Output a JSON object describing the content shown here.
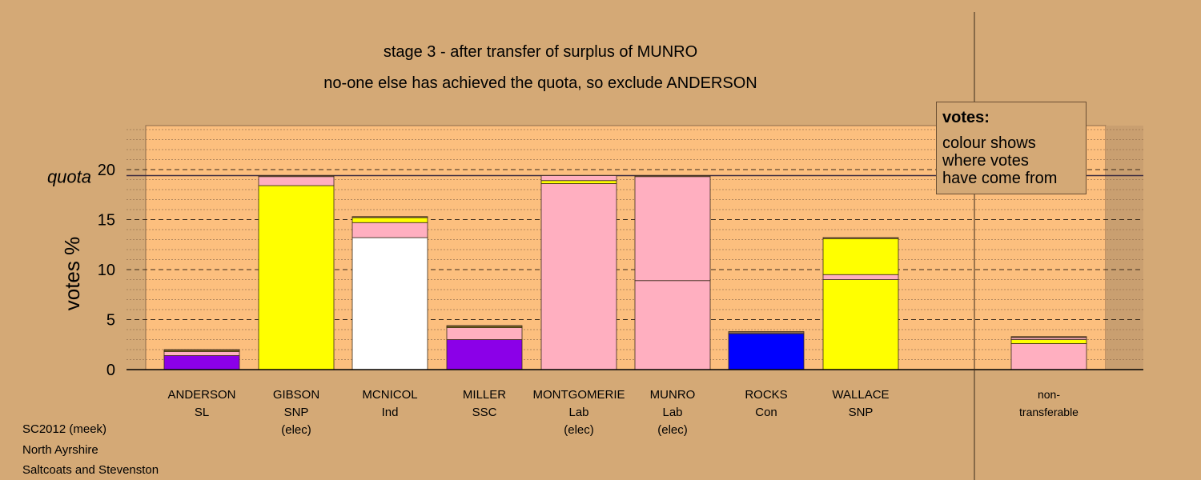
{
  "title_line1": "stage 3 - after transfer of surplus of MUNRO",
  "title_line2": "no-one else has achieved the quota, so exclude ANDERSON",
  "legend": {
    "title": "votes:",
    "text": "colour shows\nwhere votes\nhave come from"
  },
  "footer": [
    "SC2012 (meek)",
    "North Ayrshire",
    "Saltcoats and Stevenston"
  ],
  "colors": {
    "background": "#d4a976",
    "plot_area": "#fcbf7e",
    "SL": "#8b00e8",
    "SNP": "#ffff00",
    "Ind": "#ffffff",
    "SSC": "#8b00e8",
    "Lab": "#ffafc0",
    "Con": "#0000ff",
    "other": "#8b6a4a"
  },
  "chart_data": {
    "type": "bar",
    "stacked": true,
    "ylabel": "votes %",
    "ylim": [
      0,
      24
    ],
    "yticks": [
      0,
      5,
      10,
      15,
      20
    ],
    "quota": 19.4,
    "quota_label": "quota",
    "grid": true,
    "categories": [
      {
        "name": "ANDERSON",
        "party": "SL",
        "status": ""
      },
      {
        "name": "GIBSON",
        "party": "SNP",
        "status": "(elec)"
      },
      {
        "name": "MCNICOL",
        "party": "Ind",
        "status": ""
      },
      {
        "name": "MILLER",
        "party": "SSC",
        "status": ""
      },
      {
        "name": "MONTGOMERIE",
        "party": "Lab",
        "status": "(elec)"
      },
      {
        "name": "MUNRO",
        "party": "Lab",
        "status": "(elec)"
      },
      {
        "name": "ROCKS",
        "party": "Con",
        "status": ""
      },
      {
        "name": "WALLACE",
        "party": "SNP",
        "status": ""
      },
      {
        "name": "non-",
        "party": "transferable",
        "status": "",
        "separated": true
      }
    ],
    "stacks": [
      [
        {
          "source": "SL",
          "value": 1.4
        },
        {
          "source": "Lab",
          "value": 0.4
        },
        {
          "source": "SNP",
          "value": 0.1
        },
        {
          "source": "other",
          "value": 0.1
        }
      ],
      [
        {
          "source": "SNP",
          "value": 18.4
        },
        {
          "source": "Lab",
          "value": 0.9
        },
        {
          "source": "other",
          "value": 0.1
        }
      ],
      [
        {
          "source": "Ind",
          "value": 13.2
        },
        {
          "source": "Lab",
          "value": 1.5
        },
        {
          "source": "SNP",
          "value": 0.5
        },
        {
          "source": "other",
          "value": 0.1
        }
      ],
      [
        {
          "source": "SSC",
          "value": 3.0
        },
        {
          "source": "Lab",
          "value": 1.2
        },
        {
          "source": "SNP",
          "value": 0.1
        },
        {
          "source": "other",
          "value": 0.1
        }
      ],
      [
        {
          "source": "Lab",
          "value": 18.6
        },
        {
          "source": "SNP",
          "value": 0.3
        },
        {
          "source": "Lab",
          "value": 0.5
        }
      ],
      [
        {
          "source": "Lab",
          "value": 8.9
        },
        {
          "source": "Lab",
          "value": 10.4
        },
        {
          "source": "other",
          "value": 0.1
        }
      ],
      [
        {
          "source": "Con",
          "value": 3.6
        },
        {
          "source": "other",
          "value": 0.2
        }
      ],
      [
        {
          "source": "SNP",
          "value": 9.0
        },
        {
          "source": "Lab",
          "value": 0.5
        },
        {
          "source": "SNP",
          "value": 3.6
        },
        {
          "source": "other",
          "value": 0.1
        }
      ],
      [
        {
          "source": "Lab",
          "value": 2.6
        },
        {
          "source": "SNP",
          "value": 0.4
        },
        {
          "source": "Lab",
          "value": 0.2
        },
        {
          "source": "other",
          "value": 0.1
        }
      ]
    ]
  }
}
